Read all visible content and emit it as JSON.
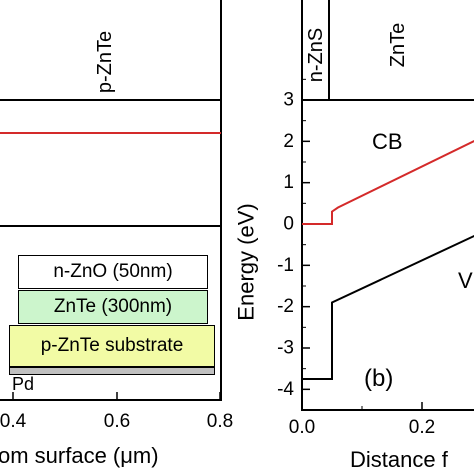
{
  "left_panel": {
    "layer_label": "p-ZnTe",
    "x_axis_label": "om surface (μm)",
    "x_ticks": [
      "0.4",
      "0.6",
      "0.8"
    ],
    "stack": {
      "layers": [
        {
          "label": "n-ZnO (50nm)",
          "color": "#ffffff"
        },
        {
          "label": "ZnTe (300nm)",
          "color": "#ccf5cc"
        },
        {
          "label": "p-ZnTe substrate",
          "color": "#f2fba5"
        }
      ],
      "contact_label": "Pd",
      "contact_color": "#c0c0c0"
    },
    "line_color": "#d42a2a"
  },
  "right_panel": {
    "layer_labels": [
      "n-ZnS",
      "ZnTe"
    ],
    "y_axis_label": "Energy (eV)",
    "y_ticks": [
      "3",
      "2",
      "1",
      "0",
      "-1",
      "-2",
      "-3",
      "-4"
    ],
    "x_ticks": [
      "0.0",
      "0.2"
    ],
    "x_axis_label": "Distance f",
    "cb_label": "CB",
    "vb_label": "V",
    "panel_tag": "(b)",
    "cb_color": "#d42a2a",
    "vb_color": "#000000"
  },
  "chart_data": {
    "type": "line",
    "xlabel": "Distance f",
    "ylabel": "Energy (eV)",
    "ylim": [
      -4.5,
      3
    ],
    "xlim": [
      0.0,
      0.3
    ],
    "series": [
      {
        "name": "CB",
        "x": [
          0.0,
          0.05,
          0.05,
          0.06,
          0.3
        ],
        "y": [
          0.0,
          0.0,
          0.3,
          0.4,
          2.1
        ]
      },
      {
        "name": "V",
        "x": [
          0.0,
          0.05,
          0.05,
          0.3
        ],
        "y": [
          -3.75,
          -3.75,
          -1.9,
          -0.2
        ]
      }
    ],
    "grid": false
  }
}
